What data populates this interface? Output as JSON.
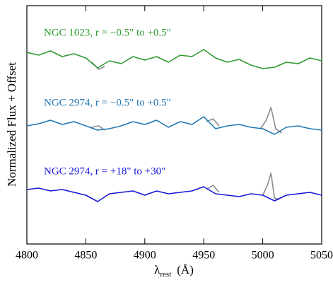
{
  "chart_data": {
    "type": "line",
    "ylabel": "Normalized Flux + Offset",
    "xlabel": {
      "symbol": "λ",
      "subscript": "rest",
      "unit": "(Å)"
    },
    "xlim": [
      4800,
      5050
    ],
    "xticks": [
      4800,
      4850,
      4900,
      4950,
      5000,
      5050
    ],
    "ylim": [
      0,
      3.37
    ],
    "x": [
      4800,
      4810,
      4820,
      4830,
      4840,
      4850,
      4860,
      4870,
      4880,
      4890,
      4900,
      4910,
      4920,
      4930,
      4940,
      4950,
      4960,
      4970,
      4980,
      4990,
      5000,
      5010,
      5020,
      5030,
      5040,
      5050
    ],
    "series": [
      {
        "color": "#8c8c8c",
        "x": [
          4855,
          4861,
          4866
        ],
        "values": [
          2.57,
          2.47,
          2.51
        ]
      },
      {
        "color": "#8c8c8c",
        "x": [
          4855,
          4861,
          4866,
          4910,
          4952,
          4958,
          4963,
          4980,
          4998,
          5003,
          5007,
          5011,
          5016
        ],
        "values": [
          1.65,
          1.67,
          1.61,
          null,
          1.73,
          1.77,
          1.67,
          null,
          1.63,
          1.75,
          1.93,
          1.63,
          1.57
        ]
      },
      {
        "color": "#8c8c8c",
        "x": [
          4952,
          4958,
          4963,
          4980,
          5000,
          5004,
          5007,
          5010,
          5014
        ],
        "values": [
          0.77,
          0.83,
          0.73,
          null,
          0.69,
          0.83,
          1.0,
          0.65,
          0.63
        ]
      },
      {
        "name": "NGC 1023,  r = −0.5\" to +0.5\"",
        "color": "#2e9a2e",
        "values": [
          2.71,
          2.67,
          2.73,
          2.65,
          2.69,
          2.63,
          2.49,
          2.59,
          2.55,
          2.65,
          2.6,
          2.65,
          2.57,
          2.67,
          2.65,
          2.75,
          2.63,
          2.57,
          2.61,
          2.53,
          2.48,
          2.5,
          2.57,
          2.55,
          2.63,
          2.59
        ]
      },
      {
        "name": "NGC 2974,  r = −0.5\" to +0.5\"",
        "color": "#1f77b4",
        "values": [
          1.67,
          1.7,
          1.75,
          1.69,
          1.73,
          1.67,
          1.61,
          1.63,
          1.67,
          1.73,
          1.69,
          1.75,
          1.65,
          1.73,
          1.69,
          1.8,
          1.63,
          1.67,
          1.69,
          1.65,
          1.63,
          1.55,
          1.65,
          1.67,
          1.63,
          1.61
        ]
      },
      {
        "name": "NGC 2974,  r = +18\" to +30\"",
        "color": "#1515d8",
        "values": [
          0.77,
          0.79,
          0.75,
          0.77,
          0.73,
          0.69,
          0.6,
          0.71,
          0.73,
          0.75,
          0.69,
          0.75,
          0.71,
          0.73,
          0.75,
          0.81,
          0.71,
          0.69,
          0.67,
          0.71,
          0.69,
          0.61,
          0.69,
          0.71,
          0.73,
          0.69
        ]
      }
    ]
  }
}
